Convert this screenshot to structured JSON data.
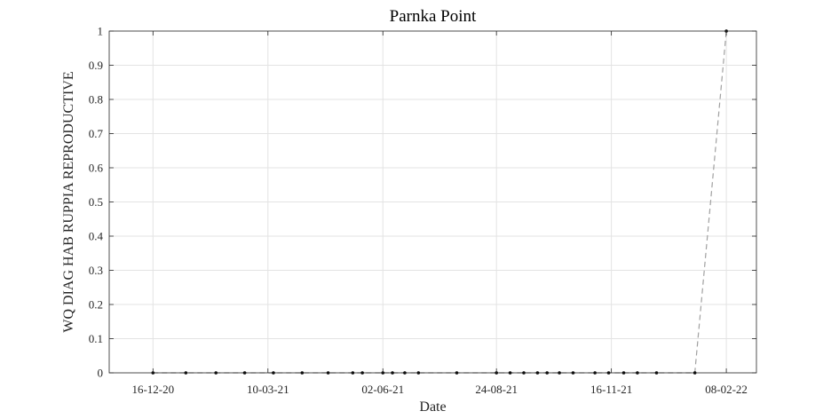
{
  "chart_data": {
    "type": "line",
    "title": "Parnka Point",
    "xlabel": "Date",
    "ylabel": "WQ DIAG HAB RUPPIA REPRODUCTIVE",
    "x_ticks": [
      "16-12-20",
      "10-03-21",
      "02-06-21",
      "24-08-21",
      "16-11-21",
      "08-02-22"
    ],
    "y_ticks": [
      "0",
      "0.1",
      "0.2",
      "0.3",
      "0.4",
      "0.5",
      "0.6",
      "0.7",
      "0.8",
      "0.9",
      "1"
    ],
    "xlim": [
      "2020-11-14",
      "2022-03-02"
    ],
    "ylim": [
      0,
      1
    ],
    "grid": true,
    "series": [
      {
        "line_style": "dashed",
        "line_color": "#a0a0a0",
        "marker_color": "#000000",
        "x": [
          "2020-12-16",
          "2021-01-09",
          "2021-01-31",
          "2021-02-21",
          "2021-03-14",
          "2021-04-04",
          "2021-04-23",
          "2021-05-11",
          "2021-05-18",
          "2021-06-02",
          "2021-06-09",
          "2021-06-18",
          "2021-06-28",
          "2021-07-26",
          "2021-08-24",
          "2021-09-03",
          "2021-09-13",
          "2021-09-23",
          "2021-09-30",
          "2021-10-09",
          "2021-10-19",
          "2021-11-04",
          "2021-11-14",
          "2021-11-25",
          "2021-12-05",
          "2021-12-19",
          "2022-01-16",
          "2022-02-08"
        ],
        "values": [
          0,
          0,
          0,
          0,
          0,
          0,
          0,
          0,
          0,
          0,
          0,
          0,
          0,
          0,
          0,
          0,
          0,
          0,
          0,
          0,
          0,
          0,
          0,
          0,
          0,
          0,
          0,
          1
        ]
      }
    ]
  }
}
